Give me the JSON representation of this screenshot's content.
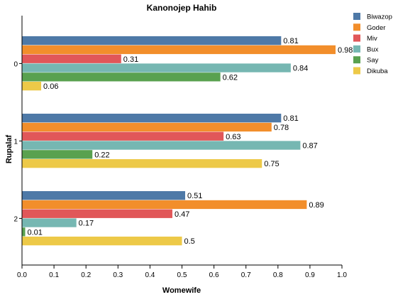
{
  "chart_data": {
    "type": "bar",
    "orientation": "horizontal",
    "title": "Kanonojep Hahib",
    "xlabel": "Womewife",
    "ylabel": "Rupalaf",
    "categories": [
      "0",
      "1",
      "2"
    ],
    "xlim": [
      0,
      1.0
    ],
    "x_ticks": [
      "0.0",
      "0.1",
      "0.2",
      "0.3",
      "0.4",
      "0.5",
      "0.6",
      "0.7",
      "0.8",
      "0.9",
      "1.0"
    ],
    "grid": false,
    "legend_position": "top-right",
    "series": [
      {
        "name": "Biwazop",
        "color": "#4e79a7",
        "values": [
          0.81,
          0.81,
          0.51
        ],
        "labels": [
          "0.81",
          "0.81",
          "0.51"
        ]
      },
      {
        "name": "Goder",
        "color": "#f28e2b",
        "values": [
          0.98,
          0.78,
          0.89
        ],
        "labels": [
          "0.98",
          "0.78",
          "0.89"
        ]
      },
      {
        "name": "Miv",
        "color": "#e15759",
        "values": [
          0.31,
          0.63,
          0.47
        ],
        "labels": [
          "0.31",
          "0.63",
          "0.47"
        ]
      },
      {
        "name": "Bux",
        "color": "#76b7b2",
        "values": [
          0.84,
          0.87,
          0.17
        ],
        "labels": [
          "0.84",
          "0.87",
          "0.17"
        ]
      },
      {
        "name": "Say",
        "color": "#59a14f",
        "values": [
          0.62,
          0.22,
          0.01
        ],
        "labels": [
          "0.62",
          "0.22",
          "0.01"
        ]
      },
      {
        "name": "Dikuba",
        "color": "#edc948",
        "values": [
          0.06,
          0.75,
          0.5
        ],
        "labels": [
          "0.06",
          "0.75",
          "0.5"
        ]
      }
    ]
  }
}
